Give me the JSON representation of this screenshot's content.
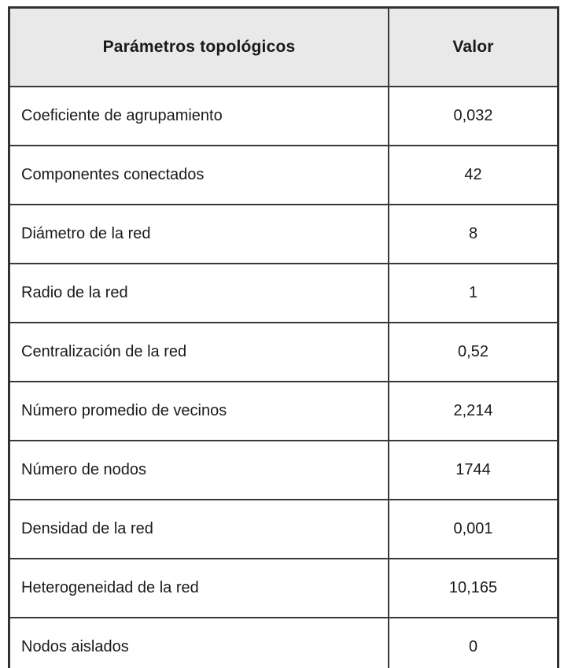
{
  "table": {
    "headers": [
      {
        "label": "Parámetros topológicos"
      },
      {
        "label": "Valor"
      }
    ],
    "rows": [
      {
        "parameter": "Coeficiente de agrupamiento",
        "value": "0,032"
      },
      {
        "parameter": "Componentes conectados",
        "value": "42"
      },
      {
        "parameter": "Diámetro de la red",
        "value": "8"
      },
      {
        "parameter": "Radio de la red",
        "value": "1"
      },
      {
        "parameter": "Centralización de la red",
        "value": "0,52"
      },
      {
        "parameter": "Número promedio de vecinos",
        "value": "2,214"
      },
      {
        "parameter": "Número de nodos",
        "value": "1744"
      },
      {
        "parameter": "Densidad de la red",
        "value": "0,001"
      },
      {
        "parameter": "Heterogeneidad de la red",
        "value": "10,165"
      },
      {
        "parameter": "Nodos aislados",
        "value": "0"
      }
    ]
  },
  "colors": {
    "header_background": "#e9e9e9",
    "border": "#383838",
    "text": "#1a1a1a",
    "page_background": "#ffffff"
  }
}
